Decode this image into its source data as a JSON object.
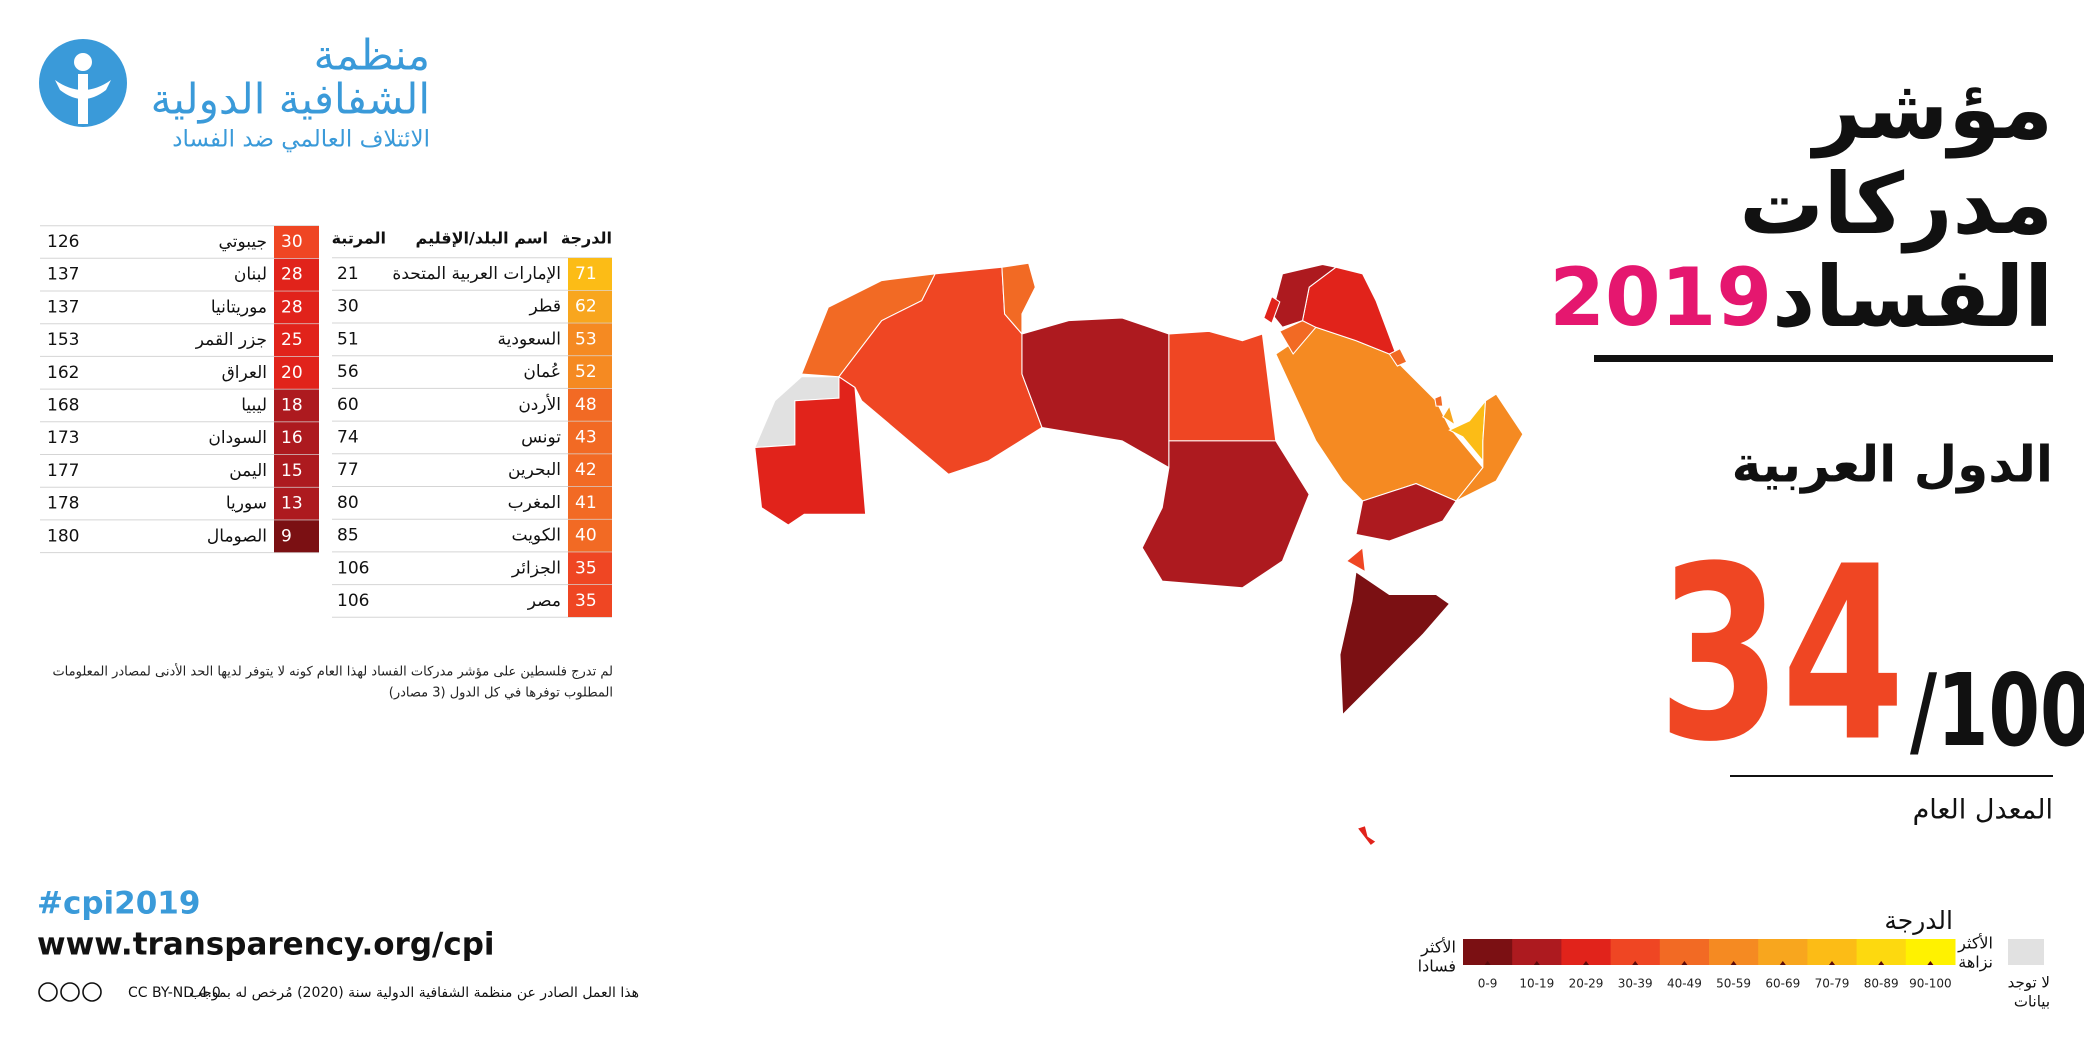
{
  "logo": {
    "name_lines": [
      "منظمة",
      "الشفافية الدولية"
    ],
    "tagline": "الائتلاف العالمي ضد الفساد"
  },
  "title": {
    "lines": [
      "مؤشر",
      "مدركات",
      "الفساد"
    ],
    "year": "2019"
  },
  "region": "الدول العربية",
  "average": {
    "score": 34,
    "out_of": "/100",
    "label": "المعدل العام"
  },
  "scores_table": {
    "headers": [
      "الدرجة",
      "اسم البلد/الإقليم",
      "المرتبة"
    ],
    "rows": [
      [
        71,
        "الإمارات العربية المتحدة",
        21
      ],
      [
        62,
        "قطر",
        30
      ],
      [
        53,
        "السعودية",
        51
      ],
      [
        52,
        "عُمان",
        56
      ],
      [
        48,
        "الأردن",
        60
      ],
      [
        43,
        "تونس",
        74
      ],
      [
        42,
        "البحرين",
        77
      ],
      [
        41,
        "المغرب",
        80
      ],
      [
        40,
        "الكويت",
        85
      ],
      [
        35,
        "الجزائر",
        106
      ],
      [
        35,
        "مصر",
        106
      ],
      [
        30,
        "جيبوتي",
        126
      ],
      [
        28,
        "لبنان",
        137
      ],
      [
        28,
        "موريتانيا",
        137
      ],
      [
        25,
        "جزر القمر",
        153
      ],
      [
        20,
        "العراق",
        162
      ],
      [
        18,
        "ليبيا",
        168
      ],
      [
        16,
        "السودان",
        173
      ],
      [
        15,
        "اليمن",
        177
      ],
      [
        13,
        "سوريا",
        178
      ],
      [
        9,
        "الصومال",
        180
      ]
    ]
  },
  "footnote": [
    "لم تدرج فلسطين على مؤشر مدركات الفساد لهذا العام كونه لا يتوفر لديها الحد الأدنى لمصادر المعلومات",
    "المطلوب توفرها في كل الدول (3 مصادر)"
  ],
  "legend": {
    "title": "الدرجة",
    "low_label": [
      "الأكثر",
      "فسادا"
    ],
    "high_label": [
      "الأكثر",
      "نزاهة"
    ],
    "no_data_label": [
      "لا توجد",
      "بيانات"
    ],
    "no_data_color": "#e1e1e1",
    "bins": [
      {
        "label": "0-9",
        "color": "#7b1013"
      },
      {
        "label": "10-19",
        "color": "#ad1a1f"
      },
      {
        "label": "20-29",
        "color": "#e1231b"
      },
      {
        "label": "30-39",
        "color": "#ef4623"
      },
      {
        "label": "40-49",
        "color": "#f26a24"
      },
      {
        "label": "50-59",
        "color": "#f58a22"
      },
      {
        "label": "60-69",
        "color": "#f8a61e"
      },
      {
        "label": "70-79",
        "color": "#fcbc16"
      },
      {
        "label": "80-89",
        "color": "#fdd90f"
      },
      {
        "label": "90-100",
        "color": "#fff200"
      }
    ]
  },
  "footer": {
    "hashtag": "#cpi2019",
    "url": "www.transparency.org/cpi",
    "license": "CC BY-ND 4.0",
    "license_text": "هذا العمل الصادر عن منظمة الشفافية الدولية سنة (2020) مُرخص له بموجب"
  }
}
